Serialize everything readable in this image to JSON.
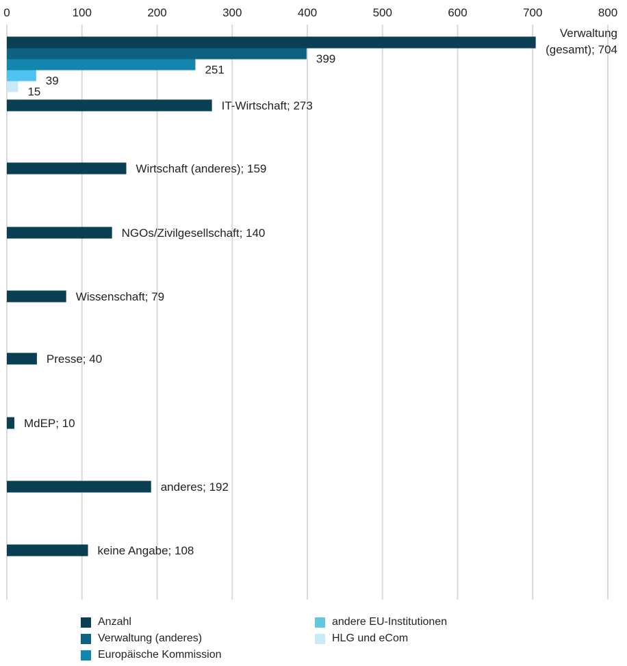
{
  "chart_data": {
    "type": "bar",
    "orientation": "horizontal",
    "xlim": [
      0,
      800
    ],
    "x_ticks": [
      "0",
      "100",
      "200",
      "300",
      "400",
      "500",
      "600",
      "700",
      "800"
    ],
    "grid": true,
    "legend_position": "bottom",
    "categories": [
      "Verwaltung (gesamt)",
      "IT-Wirtschaft",
      "Wirtschaft (anderes)",
      "NGOs/Zivilgesellschaft",
      "Wissenschaft",
      "Presse",
      "MdEP",
      "anderes",
      "keine Angabe"
    ],
    "series": [
      {
        "name": "Anzahl",
        "color": "#0b3f54",
        "values": [
          704,
          273,
          159,
          140,
          79,
          40,
          10,
          192,
          108
        ]
      },
      {
        "name": "Verwaltung (anderes)",
        "color": "#0d6283",
        "values": [
          399,
          null,
          null,
          null,
          null,
          null,
          null,
          null,
          null
        ]
      },
      {
        "name": "Europäische Kommission",
        "color": "#1386ad",
        "values": [
          251,
          null,
          null,
          null,
          null,
          null,
          null,
          null,
          null
        ]
      },
      {
        "name": "andere EU-Institutionen",
        "color": "#4fc2ef",
        "values": [
          39,
          null,
          null,
          null,
          null,
          null,
          null,
          null,
          null
        ]
      },
      {
        "name": "HLG und eCom",
        "color": "#c6ebf7",
        "values": [
          15,
          null,
          null,
          null,
          null,
          null,
          null,
          null,
          null
        ]
      }
    ],
    "labels": {
      "anzahl": [
        [
          "Verwaltung",
          "(gesamt); 704"
        ],
        [
          "IT-Wirtschaft; 273"
        ],
        [
          "Wirtschaft (anderes); 159"
        ],
        [
          "NGOs/Zivilgesellschaft; 140"
        ],
        [
          "Wissenschaft; 79"
        ],
        [
          "Presse;  40"
        ],
        [
          "MdEP; 10"
        ],
        [
          "anderes; 192"
        ],
        [
          "keine Angabe; 108"
        ]
      ],
      "sub": [
        "399",
        "251",
        "39",
        "15"
      ]
    },
    "legend_order": [
      "Anzahl",
      "Verwaltung (anderes)",
      "Europäische Kommission",
      "andere EU-Institutionen",
      "HLG und eCom"
    ],
    "legend_swatch_colors": [
      "#0b3f54",
      "#0d6283",
      "#1386ad",
      "#62c8dc",
      "#c6ebf7"
    ]
  }
}
